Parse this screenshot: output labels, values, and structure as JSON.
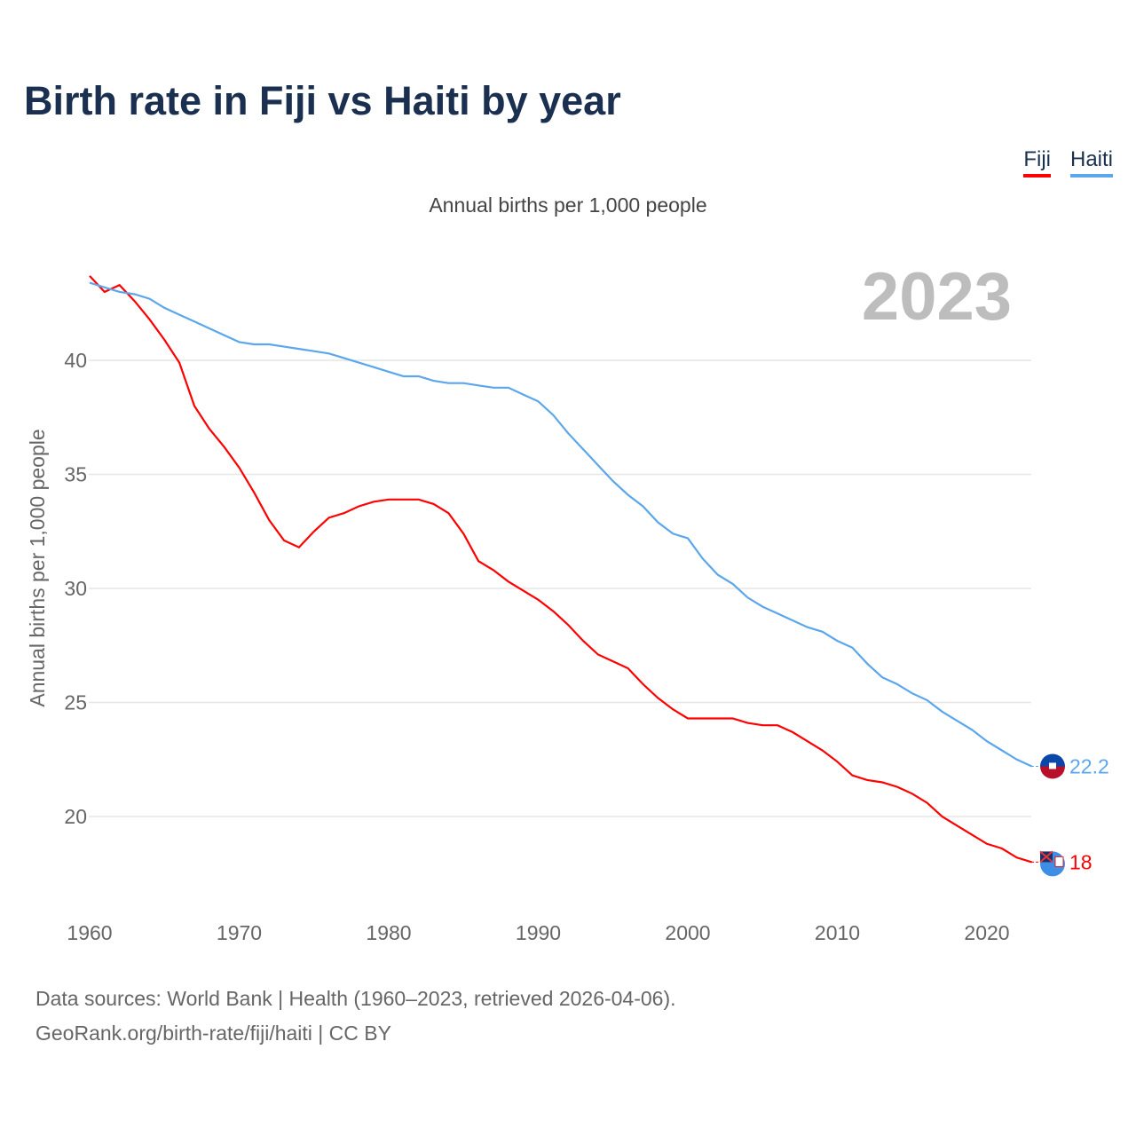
{
  "chart_data": {
    "type": "line",
    "title": "Birth rate in Fiji vs Haiti by year",
    "subtitle": "Annual births per 1,000 people",
    "ylabel": "Annual births per 1,000 people",
    "xlabel": "",
    "year_watermark": "2023",
    "xlim": [
      1960,
      2023
    ],
    "ylim": [
      17,
      44
    ],
    "x_ticks": [
      "1960",
      "1970",
      "1980",
      "1990",
      "2000",
      "2010",
      "2020"
    ],
    "y_ticks": [
      "20",
      "25",
      "30",
      "35",
      "40"
    ],
    "legend": [
      "Fiji",
      "Haiti"
    ],
    "legend_position": "top-right",
    "grid": true,
    "x": [
      1960,
      1961,
      1962,
      1963,
      1964,
      1965,
      1966,
      1967,
      1968,
      1969,
      1970,
      1971,
      1972,
      1973,
      1974,
      1975,
      1976,
      1977,
      1978,
      1979,
      1980,
      1981,
      1982,
      1983,
      1984,
      1985,
      1986,
      1987,
      1988,
      1989,
      1990,
      1991,
      1992,
      1993,
      1994,
      1995,
      1996,
      1997,
      1998,
      1999,
      2000,
      2001,
      2002,
      2003,
      2004,
      2005,
      2006,
      2007,
      2008,
      2009,
      2010,
      2011,
      2012,
      2013,
      2014,
      2015,
      2016,
      2017,
      2018,
      2019,
      2020,
      2021,
      2022,
      2023
    ],
    "series": [
      {
        "name": "Fiji",
        "color": "#ff0000",
        "end_label": "18",
        "values": [
          43.7,
          43.0,
          43.3,
          42.6,
          41.8,
          40.9,
          39.9,
          38.0,
          37.0,
          36.2,
          35.3,
          34.2,
          33.0,
          32.1,
          31.8,
          32.5,
          33.1,
          33.3,
          33.6,
          33.8,
          33.9,
          33.9,
          33.9,
          33.7,
          33.3,
          32.4,
          31.2,
          30.8,
          30.3,
          29.9,
          29.5,
          29.0,
          28.4,
          27.7,
          27.1,
          26.8,
          26.5,
          25.8,
          25.2,
          24.7,
          24.3,
          24.3,
          24.3,
          24.3,
          24.1,
          24.0,
          24.0,
          23.7,
          23.3,
          22.9,
          22.4,
          21.8,
          21.6,
          21.5,
          21.3,
          21.0,
          20.6,
          20.0,
          19.6,
          19.2,
          18.8,
          18.6,
          18.2,
          18.0
        ]
      },
      {
        "name": "Haiti",
        "color": "#5ba6ec",
        "end_label": "22.2",
        "values": [
          43.4,
          43.2,
          43.0,
          42.9,
          42.7,
          42.3,
          42.0,
          41.7,
          41.4,
          41.1,
          40.8,
          40.7,
          40.7,
          40.6,
          40.5,
          40.4,
          40.3,
          40.1,
          39.9,
          39.7,
          39.5,
          39.3,
          39.3,
          39.1,
          39.0,
          39.0,
          38.9,
          38.8,
          38.8,
          38.5,
          38.2,
          37.6,
          36.8,
          36.1,
          35.4,
          34.7,
          34.1,
          33.6,
          32.9,
          32.4,
          32.2,
          31.3,
          30.6,
          30.2,
          29.6,
          29.2,
          28.9,
          28.6,
          28.3,
          28.1,
          27.7,
          27.4,
          26.7,
          26.1,
          25.8,
          25.4,
          25.1,
          24.6,
          24.2,
          23.8,
          23.3,
          22.9,
          22.5,
          22.2
        ]
      }
    ]
  },
  "source": {
    "line1": "Data sources: World Bank | Health (1960–2023, retrieved 2026-04-06).",
    "line2": "GeoRank.org/birth-rate/fiji/haiti | CC BY"
  }
}
